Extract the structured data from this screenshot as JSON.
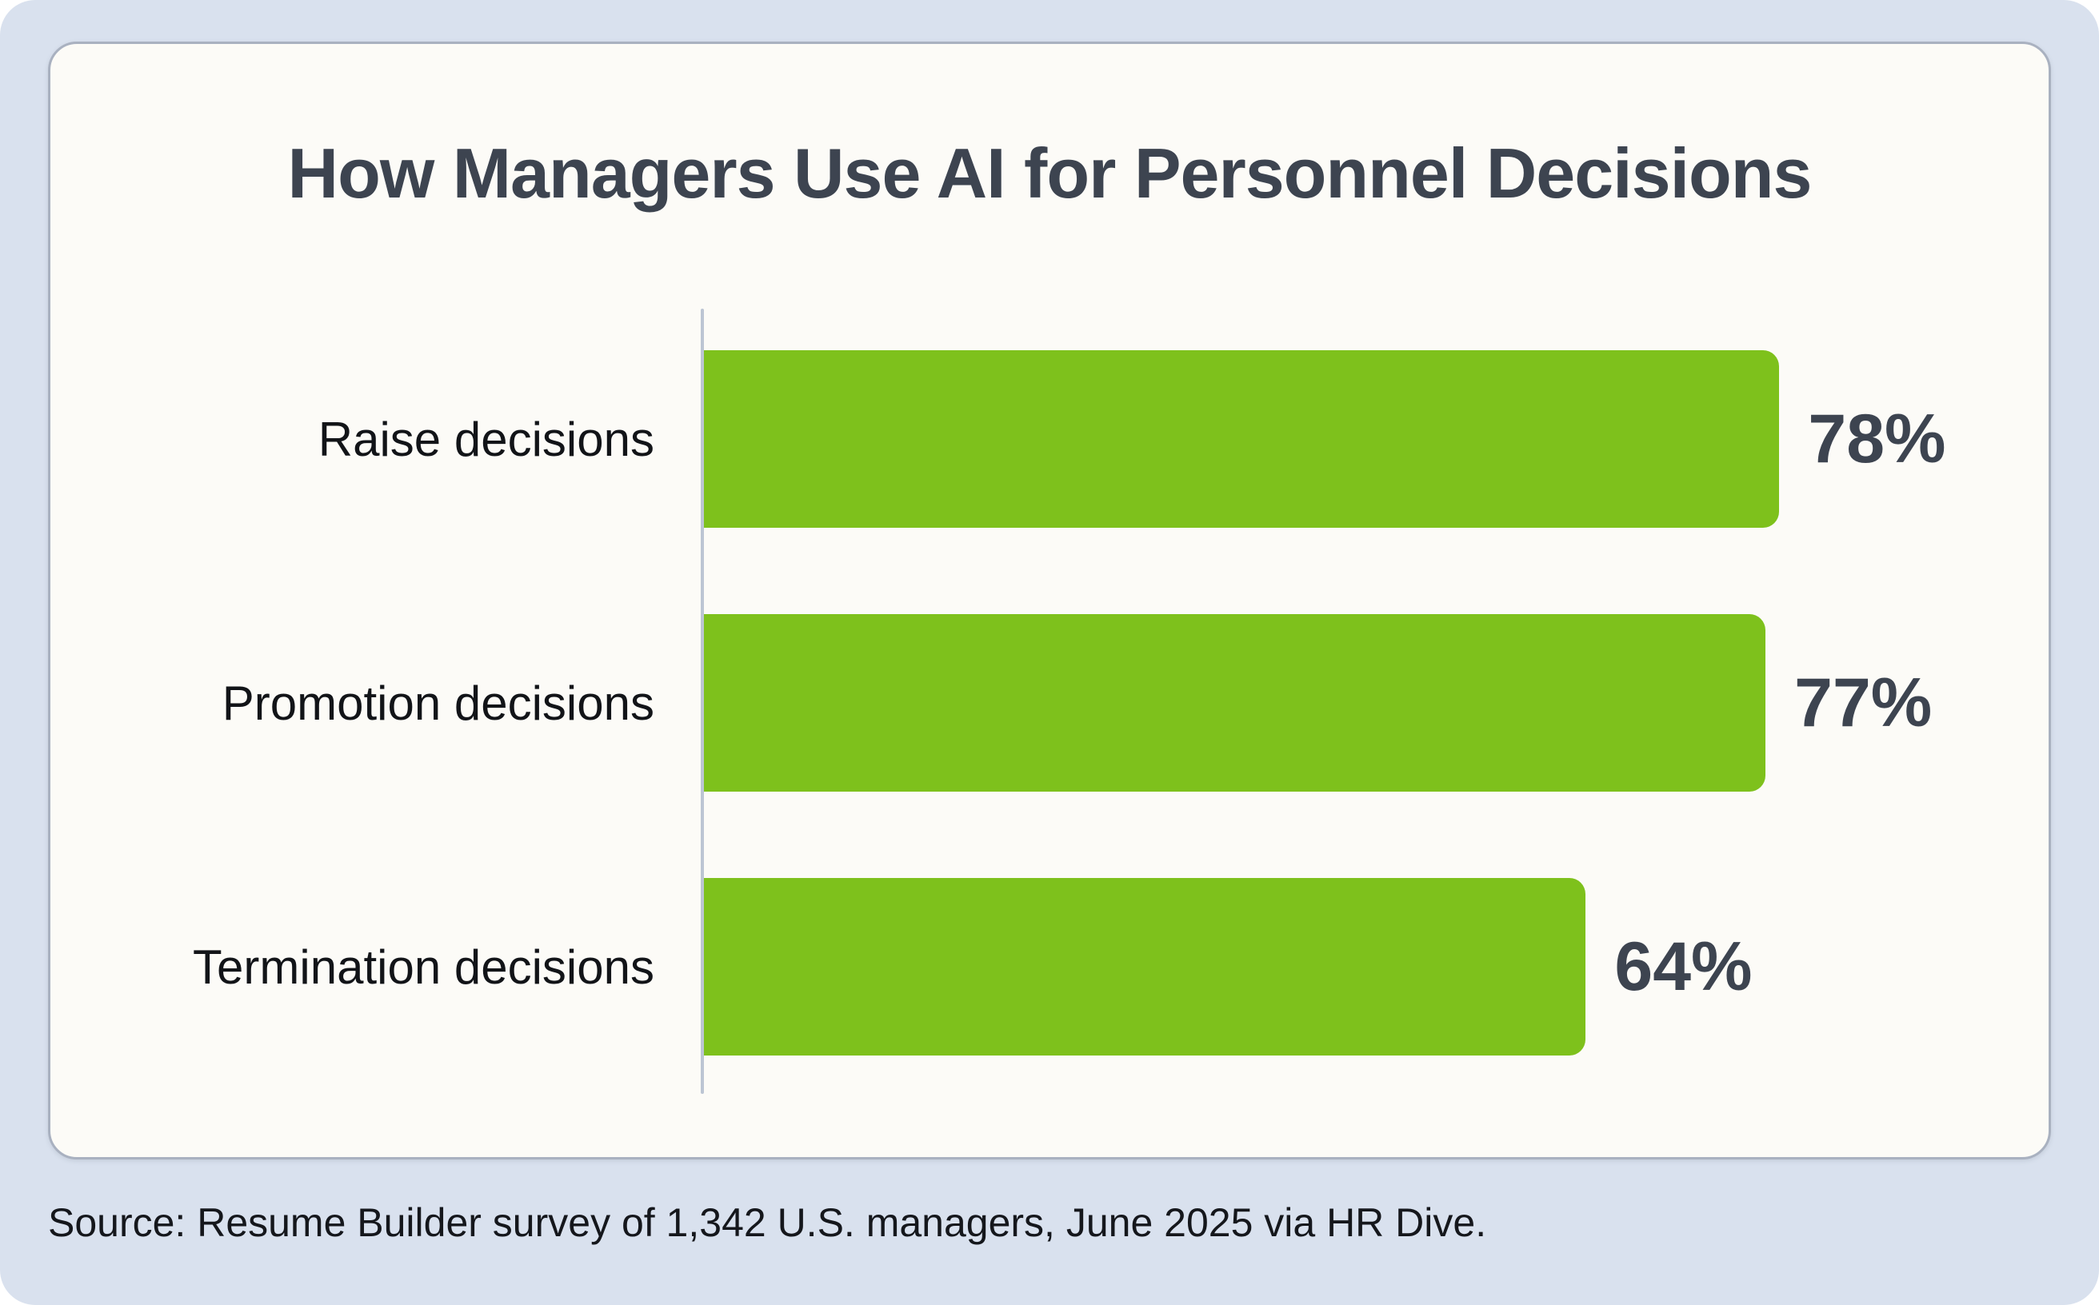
{
  "page": {
    "background_color": "#d9e1ee",
    "card_background_color": "#fcfbf7",
    "card_border_color": "#a9b1c0"
  },
  "chart_data": {
    "type": "bar",
    "orientation": "horizontal",
    "title": "How Managers Use AI for Personnel Decisions",
    "categories": [
      "Raise decisions",
      "Promotion decisions",
      "Termination decisions"
    ],
    "values": [
      78,
      77,
      64
    ],
    "value_labels": [
      "78%",
      "77%",
      "64%"
    ],
    "bar_color": "#7ec11c",
    "title_color": "#3d4450",
    "value_label_color": "#3d4450",
    "xlim": [
      0,
      94
    ],
    "grid": false,
    "legend": false,
    "axis_line_color": "#bcc5d3"
  },
  "source": {
    "text": "Source: Resume Builder survey of 1,342 U.S. managers, June 2025 via HR Dive."
  }
}
